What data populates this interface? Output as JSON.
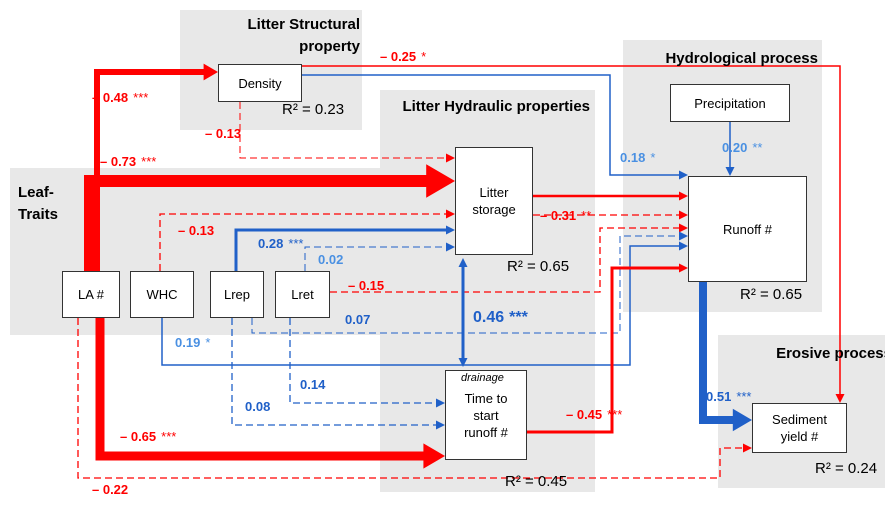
{
  "groups": [
    {
      "title": "Litter Structural property"
    },
    {
      "title": "Leaf-Traits"
    },
    {
      "title": "Litter Hydraulic properties"
    },
    {
      "title": "Hydrological process"
    },
    {
      "title": "Erosive process"
    }
  ],
  "nodes": [
    {
      "label": "Density",
      "r2": "R² = 0.23"
    },
    {
      "label": "Precipitation"
    },
    {
      "label": "Litter storage",
      "r2": "R² = 0.65"
    },
    {
      "label": "Runoff #",
      "r2": "R² = 0.65"
    },
    {
      "label": "LA #"
    },
    {
      "label": "WHC"
    },
    {
      "label": "Lrep"
    },
    {
      "label": "Lret"
    },
    {
      "label": "Time to start runoff #",
      "note": "drainage",
      "r2": "R² = 0.45"
    },
    {
      "label": "Sediment yield #",
      "r2": "R² = 0.24"
    }
  ],
  "paths": [
    {
      "coefficient": "– 0.48",
      "significance": "***"
    },
    {
      "coefficient": "– 0.73",
      "significance": "***"
    },
    {
      "coefficient": "– 0.65",
      "significance": "***"
    },
    {
      "coefficient": "– 0.22"
    },
    {
      "coefficient": "– 0.13"
    },
    {
      "coefficient": "0.18",
      "significance": "*"
    },
    {
      "coefficient": "– 0.25",
      "significance": "*"
    },
    {
      "coefficient": "0.20",
      "significance": "**"
    },
    {
      "coefficient": "– 0.13"
    },
    {
      "coefficient": "0.28",
      "significance": "***"
    },
    {
      "coefficient": "0.02"
    },
    {
      "coefficient": "– 0.31",
      "significance": "**"
    },
    {
      "coefficient": "– 0.15"
    },
    {
      "coefficient": "0.07"
    },
    {
      "coefficient": "0.19",
      "significance": "*"
    },
    {
      "coefficient": "0.14"
    },
    {
      "coefficient": "0.08"
    },
    {
      "coefficient": "0.46",
      "significance": "***"
    },
    {
      "coefficient": "– 0.45",
      "significance": "***"
    },
    {
      "coefficient": "0.51",
      "significance": "***"
    }
  ]
}
